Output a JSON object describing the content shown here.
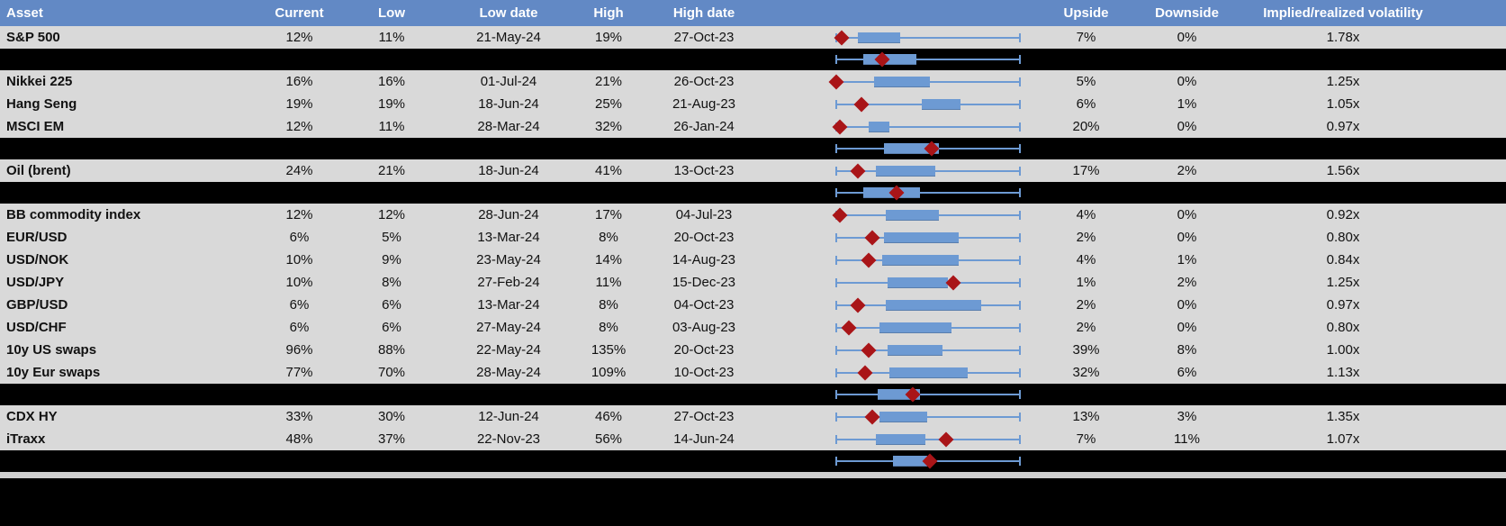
{
  "colors": {
    "header_bg": "#6289c5",
    "header_text": "#ffffff",
    "row_bg": "#d9d9d9",
    "separator_bg": "#000000",
    "box_fill": "#6d9ad3",
    "whisker_line": "#6d9ad3",
    "current_diamond": "#a91518",
    "cell_text": "#111111",
    "footer_strip": "#cfcfcf"
  },
  "chart_data": {
    "type": "table",
    "note": "Implied volatility monitor. Each row embeds a horizontal box-whisker plot: whisker span normalized 0-100, box = interquartile range, red diamond = current level. Black separator rows contain aggregate box plots.",
    "columns": [
      "Asset",
      "Current",
      "Low",
      "Low date",
      "High",
      "High date",
      "Upside",
      "Downside",
      "Implied/realized volatility"
    ],
    "rows": [
      {
        "kind": "data",
        "asset": "S&P 500",
        "current": "12%",
        "low": "11%",
        "low_date": "21-May-24",
        "high": "19%",
        "high_date": "27-Oct-23",
        "upside": "7%",
        "downside": "0%",
        "vol": "1.78x",
        "boxplot": {
          "whisker_min": 0,
          "whisker_max": 100,
          "box_low": 12,
          "box_high": 35,
          "current_marker": 3
        }
      },
      {
        "kind": "separator",
        "boxplot": {
          "whisker_min": 0,
          "whisker_max": 100,
          "box_low": 15,
          "box_high": 44,
          "current_marker": 25
        }
      },
      {
        "kind": "data",
        "asset": "Nikkei 225",
        "current": "16%",
        "low": "16%",
        "low_date": "01-Jul-24",
        "high": "21%",
        "high_date": "26-Oct-23",
        "upside": "5%",
        "downside": "0%",
        "vol": "1.25x",
        "boxplot": {
          "whisker_min": 0,
          "whisker_max": 100,
          "box_low": 21,
          "box_high": 51,
          "current_marker": 0
        }
      },
      {
        "kind": "data",
        "asset": "Hang Seng",
        "current": "19%",
        "low": "19%",
        "low_date": "18-Jun-24",
        "high": "25%",
        "high_date": "21-Aug-23",
        "upside": "6%",
        "downside": "1%",
        "vol": "1.05x",
        "boxplot": {
          "whisker_min": 0,
          "whisker_max": 100,
          "box_low": 47,
          "box_high": 68,
          "current_marker": 14
        }
      },
      {
        "kind": "data",
        "asset": "MSCI EM",
        "current": "12%",
        "low": "11%",
        "low_date": "28-Mar-24",
        "high": "32%",
        "high_date": "26-Jan-24",
        "upside": "20%",
        "downside": "0%",
        "vol": "0.97x",
        "boxplot": {
          "whisker_min": 0,
          "whisker_max": 100,
          "box_low": 18,
          "box_high": 29,
          "current_marker": 2
        }
      },
      {
        "kind": "separator",
        "boxplot": {
          "whisker_min": 0,
          "whisker_max": 100,
          "box_low": 26,
          "box_high": 56,
          "current_marker": 52
        }
      },
      {
        "kind": "data",
        "asset": "Oil (brent)",
        "current": "24%",
        "low": "21%",
        "low_date": "18-Jun-24",
        "high": "41%",
        "high_date": "13-Oct-23",
        "upside": "17%",
        "downside": "2%",
        "vol": "1.56x",
        "boxplot": {
          "whisker_min": 0,
          "whisker_max": 100,
          "box_low": 22,
          "box_high": 54,
          "current_marker": 12
        }
      },
      {
        "kind": "separator",
        "boxplot": {
          "whisker_min": 0,
          "whisker_max": 100,
          "box_low": 15,
          "box_high": 46,
          "current_marker": 33
        }
      },
      {
        "kind": "data",
        "asset": "BB commodity index",
        "current": "12%",
        "low": "12%",
        "low_date": "28-Jun-24",
        "high": "17%",
        "high_date": "04-Jul-23",
        "upside": "4%",
        "downside": "0%",
        "vol": "0.92x",
        "boxplot": {
          "whisker_min": 0,
          "whisker_max": 100,
          "box_low": 27,
          "box_high": 56,
          "current_marker": 2
        }
      },
      {
        "kind": "data",
        "asset": "EUR/USD",
        "current": "6%",
        "low": "5%",
        "low_date": "13-Mar-24",
        "high": "8%",
        "high_date": "20-Oct-23",
        "upside": "2%",
        "downside": "0%",
        "vol": "0.80x",
        "boxplot": {
          "whisker_min": 0,
          "whisker_max": 100,
          "box_low": 26,
          "box_high": 67,
          "current_marker": 20
        }
      },
      {
        "kind": "data",
        "asset": "USD/NOK",
        "current": "10%",
        "low": "9%",
        "low_date": "23-May-24",
        "high": "14%",
        "high_date": "14-Aug-23",
        "upside": "4%",
        "downside": "1%",
        "vol": "0.84x",
        "boxplot": {
          "whisker_min": 0,
          "whisker_max": 100,
          "box_low": 25,
          "box_high": 67,
          "current_marker": 18
        }
      },
      {
        "kind": "data",
        "asset": "USD/JPY",
        "current": "10%",
        "low": "8%",
        "low_date": "27-Feb-24",
        "high": "11%",
        "high_date": "15-Dec-23",
        "upside": "1%",
        "downside": "2%",
        "vol": "1.25x",
        "boxplot": {
          "whisker_min": 0,
          "whisker_max": 100,
          "box_low": 28,
          "box_high": 61,
          "current_marker": 64
        }
      },
      {
        "kind": "data",
        "asset": "GBP/USD",
        "current": "6%",
        "low": "6%",
        "low_date": "13-Mar-24",
        "high": "8%",
        "high_date": "04-Oct-23",
        "upside": "2%",
        "downside": "0%",
        "vol": "0.97x",
        "boxplot": {
          "whisker_min": 0,
          "whisker_max": 100,
          "box_low": 27,
          "box_high": 79,
          "current_marker": 12
        }
      },
      {
        "kind": "data",
        "asset": "USD/CHF",
        "current": "6%",
        "low": "6%",
        "low_date": "27-May-24",
        "high": "8%",
        "high_date": "03-Aug-23",
        "upside": "2%",
        "downside": "0%",
        "vol": "0.80x",
        "boxplot": {
          "whisker_min": 0,
          "whisker_max": 100,
          "box_low": 24,
          "box_high": 63,
          "current_marker": 7
        }
      },
      {
        "kind": "data",
        "asset": "10y US swaps",
        "current": "96%",
        "low": "88%",
        "low_date": "22-May-24",
        "high": "135%",
        "high_date": "20-Oct-23",
        "upside": "39%",
        "downside": "8%",
        "vol": "1.00x",
        "boxplot": {
          "whisker_min": 0,
          "whisker_max": 100,
          "box_low": 28,
          "box_high": 58,
          "current_marker": 18
        }
      },
      {
        "kind": "data",
        "asset": "10y Eur swaps",
        "current": "77%",
        "low": "70%",
        "low_date": "28-May-24",
        "high": "109%",
        "high_date": "10-Oct-23",
        "upside": "32%",
        "downside": "6%",
        "vol": "1.13x",
        "boxplot": {
          "whisker_min": 0,
          "whisker_max": 100,
          "box_low": 29,
          "box_high": 72,
          "current_marker": 16
        }
      },
      {
        "kind": "separator",
        "boxplot": {
          "whisker_min": 0,
          "whisker_max": 100,
          "box_low": 23,
          "box_high": 46,
          "current_marker": 42
        }
      },
      {
        "kind": "data",
        "asset": "CDX HY",
        "current": "33%",
        "low": "30%",
        "low_date": "12-Jun-24",
        "high": "46%",
        "high_date": "27-Oct-23",
        "upside": "13%",
        "downside": "3%",
        "vol": "1.35x",
        "boxplot": {
          "whisker_min": 0,
          "whisker_max": 100,
          "box_low": 24,
          "box_high": 50,
          "current_marker": 20
        }
      },
      {
        "kind": "data",
        "asset": "iTraxx",
        "current": "48%",
        "low": "37%",
        "low_date": "22-Nov-23",
        "high": "56%",
        "high_date": "14-Jun-24",
        "upside": "7%",
        "downside": "11%",
        "vol": "1.07x",
        "boxplot": {
          "whisker_min": 0,
          "whisker_max": 100,
          "box_low": 22,
          "box_high": 49,
          "current_marker": 60
        }
      },
      {
        "kind": "separator",
        "boxplot": {
          "whisker_min": 0,
          "whisker_max": 100,
          "box_low": 31,
          "box_high": 50,
          "current_marker": 51
        }
      }
    ]
  }
}
